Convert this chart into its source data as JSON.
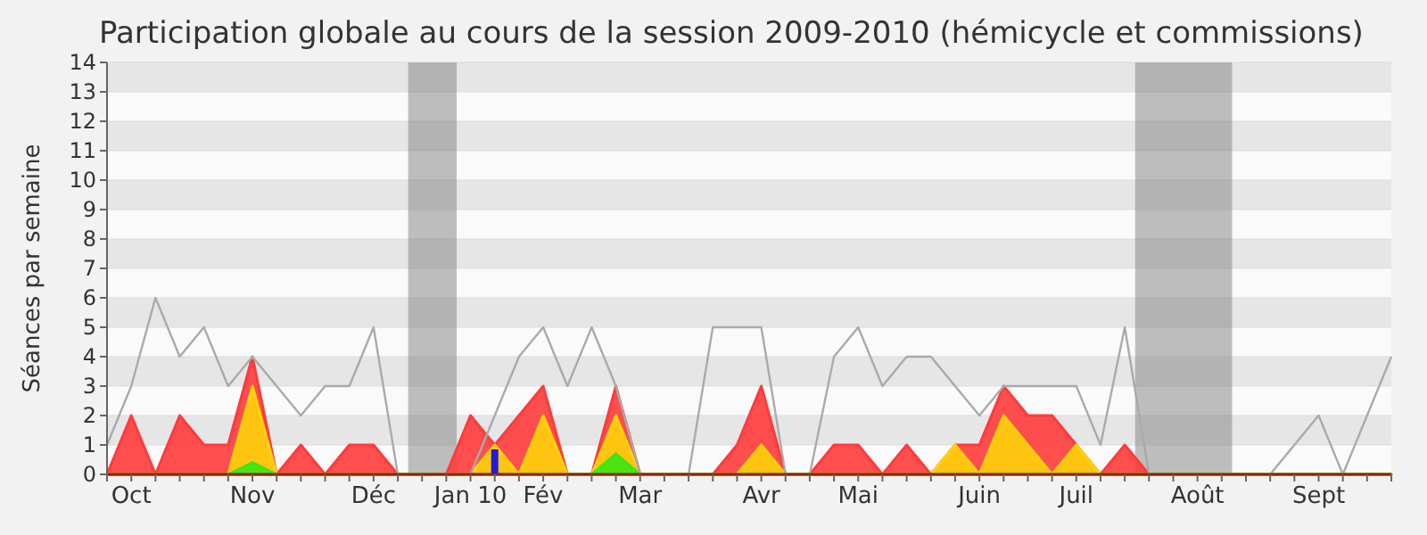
{
  "chart_data": {
    "type": "area",
    "title": "Participation globale au cours de la session 2009-2010 (hémicycle et commissions)",
    "ylabel": "Séances par semaine",
    "x": [
      "2009-09-28",
      "2009-10-05",
      "2009-10-12",
      "2009-10-19",
      "2009-10-26",
      "2009-11-02",
      "2009-11-09",
      "2009-11-16",
      "2009-11-23",
      "2009-11-30",
      "2009-12-07",
      "2009-12-14",
      "2009-12-21",
      "2009-12-28",
      "2010-01-04",
      "2010-01-11",
      "2010-01-18",
      "2010-01-25",
      "2010-02-01",
      "2010-02-08",
      "2010-02-15",
      "2010-02-22",
      "2010-03-01",
      "2010-03-08",
      "2010-03-15",
      "2010-03-22",
      "2010-03-29",
      "2010-04-05",
      "2010-04-12",
      "2010-04-19",
      "2010-04-26",
      "2010-05-03",
      "2010-05-10",
      "2010-05-17",
      "2010-05-24",
      "2010-05-31",
      "2010-06-07",
      "2010-06-14",
      "2010-06-21",
      "2010-06-28",
      "2010-07-05",
      "2010-07-12",
      "2010-07-19",
      "2010-07-26",
      "2010-08-02",
      "2010-08-09",
      "2010-08-16",
      "2010-08-23",
      "2010-08-30",
      "2010-09-06",
      "2010-09-13",
      "2010-09-20",
      "2010-09-27",
      "2010-10-04"
    ],
    "xlim": [
      "2009-09-28",
      "2010-10-04"
    ],
    "xticks": [
      {
        "value": "2009-09-28",
        "label": null
      },
      {
        "value": "2009-10-05",
        "label": "Oct"
      },
      {
        "value": "2009-10-12",
        "label": null
      },
      {
        "value": "2009-10-19",
        "label": null
      },
      {
        "value": "2009-10-26",
        "label": null
      },
      {
        "value": "2009-11-02",
        "label": null
      },
      {
        "value": "2009-11-09",
        "label": "Nov"
      },
      {
        "value": "2009-11-16",
        "label": null
      },
      {
        "value": "2009-11-23",
        "label": null
      },
      {
        "value": "2009-11-30",
        "label": null
      },
      {
        "value": "2009-12-07",
        "label": null
      },
      {
        "value": "2009-12-14",
        "label": "Déc"
      },
      {
        "value": "2009-12-21",
        "label": null
      },
      {
        "value": "2009-12-28",
        "label": null
      },
      {
        "value": "2010-01-04",
        "label": null
      },
      {
        "value": "2010-01-11",
        "label": "Jan 10"
      },
      {
        "value": "2010-01-18",
        "label": null
      },
      {
        "value": "2010-01-25",
        "label": null
      },
      {
        "value": "2010-02-01",
        "label": "Fév"
      },
      {
        "value": "2010-02-08",
        "label": null
      },
      {
        "value": "2010-02-15",
        "label": null
      },
      {
        "value": "2010-02-22",
        "label": null
      },
      {
        "value": "2010-03-01",
        "label": "Mar"
      },
      {
        "value": "2010-03-08",
        "label": null
      },
      {
        "value": "2010-03-15",
        "label": null
      },
      {
        "value": "2010-03-22",
        "label": null
      },
      {
        "value": "2010-03-29",
        "label": null
      },
      {
        "value": "2010-04-05",
        "label": "Avr"
      },
      {
        "value": "2010-04-12",
        "label": null
      },
      {
        "value": "2010-04-19",
        "label": null
      },
      {
        "value": "2010-04-26",
        "label": null
      },
      {
        "value": "2010-05-03",
        "label": "Mai"
      },
      {
        "value": "2010-05-10",
        "label": null
      },
      {
        "value": "2010-05-17",
        "label": null
      },
      {
        "value": "2010-05-24",
        "label": null
      },
      {
        "value": "2010-05-31",
        "label": null
      },
      {
        "value": "2010-06-07",
        "label": "Juin"
      },
      {
        "value": "2010-06-14",
        "label": null
      },
      {
        "value": "2010-06-21",
        "label": null
      },
      {
        "value": "2010-06-28",
        "label": null
      },
      {
        "value": "2010-07-05",
        "label": "Juil"
      },
      {
        "value": "2010-07-12",
        "label": null
      },
      {
        "value": "2010-07-19",
        "label": null
      },
      {
        "value": "2010-07-26",
        "label": null
      },
      {
        "value": "2010-08-02",
        "label": null
      },
      {
        "value": "2010-08-09",
        "label": "Août"
      },
      {
        "value": "2010-08-16",
        "label": null
      },
      {
        "value": "2010-08-23",
        "label": null
      },
      {
        "value": "2010-08-30",
        "label": null
      },
      {
        "value": "2010-09-06",
        "label": null
      },
      {
        "value": "2010-09-13",
        "label": "Sept"
      },
      {
        "value": "2010-09-20",
        "label": null
      },
      {
        "value": "2010-09-27",
        "label": null
      },
      {
        "value": "2010-10-04",
        "label": null
      }
    ],
    "ylim": [
      0,
      14
    ],
    "yticks": [
      0,
      1,
      2,
      3,
      4,
      5,
      6,
      7,
      8,
      9,
      10,
      11,
      12,
      13,
      14
    ],
    "grid": "y",
    "bands": [
      {
        "axis": "x",
        "from": "2009-12-24",
        "to": "2010-01-07",
        "color": "#808080"
      },
      {
        "axis": "x",
        "from": "2010-07-22",
        "to": "2010-08-19",
        "color": "#808080"
      }
    ],
    "series": [
      {
        "color": "#ff3b3b",
        "values": [
          0,
          2,
          0,
          2,
          1,
          1,
          4,
          0,
          1,
          0,
          1,
          1,
          0,
          0,
          0,
          2,
          1,
          2,
          3,
          0,
          0,
          3,
          0,
          0,
          0,
          0,
          1,
          3,
          0,
          0,
          1,
          1,
          0,
          1,
          0,
          1,
          1,
          3,
          2,
          2,
          1,
          0,
          1,
          0,
          0,
          0,
          0,
          0,
          0,
          0,
          0,
          0,
          0,
          0
        ]
      },
      {
        "color": "#ffd20a",
        "values": [
          0,
          0,
          0,
          0,
          0,
          0,
          3,
          0,
          0,
          0,
          0,
          0,
          0,
          0,
          0,
          0,
          1,
          0,
          2,
          0,
          0,
          2,
          0,
          0,
          0,
          0,
          0,
          1,
          0,
          0,
          0,
          0,
          0,
          0,
          0,
          1,
          0,
          2,
          1,
          0,
          1,
          0,
          0,
          0,
          0,
          0,
          0,
          0,
          0,
          0,
          0,
          0,
          0,
          0
        ]
      },
      {
        "color": "#3ce614",
        "values": [
          0,
          0,
          0,
          0,
          0,
          0,
          0.4,
          0,
          0,
          0,
          0,
          0,
          0,
          0,
          0,
          0,
          0,
          0,
          0,
          0,
          0,
          0.7,
          0,
          0,
          0,
          0,
          0,
          0,
          0,
          0,
          0,
          0,
          0,
          0,
          0,
          0,
          0,
          0,
          0,
          0,
          0,
          0,
          0,
          0,
          0,
          0,
          0,
          0,
          0,
          0,
          0,
          0,
          0,
          0
        ]
      },
      {
        "type": "bar",
        "color": "#1e1edc",
        "values": [
          null,
          null,
          null,
          null,
          null,
          null,
          null,
          null,
          null,
          null,
          null,
          null,
          null,
          null,
          null,
          null,
          0.85,
          null,
          null,
          null,
          null,
          null,
          null,
          null,
          null,
          null,
          null,
          null,
          null,
          null,
          null,
          null,
          null,
          null,
          null,
          null,
          null,
          null,
          null,
          null,
          null,
          null,
          null,
          null,
          null,
          null,
          null,
          null,
          null,
          null,
          null,
          null,
          null,
          null
        ]
      },
      {
        "type": "line",
        "color": "#aaaaaa",
        "values": [
          1,
          3,
          6,
          4,
          5,
          3,
          4,
          3,
          2,
          3,
          3,
          5,
          0,
          0,
          0,
          0,
          2,
          4,
          5,
          3,
          5,
          3,
          0,
          0,
          0,
          5,
          5,
          5,
          0,
          0,
          4,
          5,
          3,
          4,
          4,
          3,
          2,
          3,
          3,
          3,
          3,
          1,
          5,
          0,
          0,
          0,
          0,
          0,
          0,
          1,
          2,
          0,
          2,
          4
        ]
      }
    ]
  }
}
